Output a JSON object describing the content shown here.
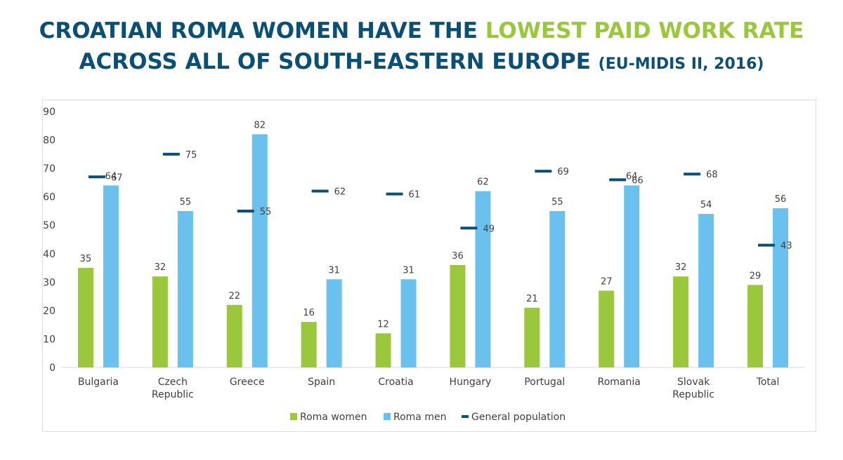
{
  "title": {
    "line1_prefix": "CROATIAN ROMA WOMEN HAVE THE ",
    "line1_highlight": "LOWEST PAID WORK RATE",
    "line2_main": "ACROSS ALL OF SOUTH-EASTERN EUROPE ",
    "line2_source": "(EU-MIDIS II, 2016)"
  },
  "colors": {
    "title": "#0b4f72",
    "highlight": "#9bc73d",
    "roma_women": "#9bc73d",
    "roma_men": "#6bc1ee",
    "general_population": "#0b4f72"
  },
  "chart_data": {
    "type": "bar",
    "categories": [
      [
        "Bulgaria"
      ],
      [
        "Czech",
        "Republic"
      ],
      [
        "Greece"
      ],
      [
        "Spain"
      ],
      [
        "Croatia"
      ],
      [
        "Hungary"
      ],
      [
        "Portugal"
      ],
      [
        "Romania"
      ],
      [
        "Slovak",
        "Republic"
      ],
      [
        "Total"
      ]
    ],
    "series": [
      {
        "name": "Roma women",
        "kind": "bar",
        "values": [
          35,
          32,
          22,
          16,
          12,
          36,
          21,
          27,
          32,
          29
        ]
      },
      {
        "name": "Roma men",
        "kind": "bar",
        "values": [
          64,
          55,
          82,
          31,
          31,
          62,
          55,
          64,
          54,
          56
        ]
      },
      {
        "name": "General population",
        "kind": "marker",
        "values": [
          67,
          75,
          55,
          62,
          61,
          49,
          69,
          66,
          68,
          43
        ]
      }
    ],
    "ylim": [
      0,
      90
    ],
    "yticks": [
      "0",
      "10",
      "20",
      "30",
      "40",
      "50",
      "60",
      "70",
      "80",
      "90"
    ],
    "grid": false,
    "legend_position": "bottom"
  }
}
